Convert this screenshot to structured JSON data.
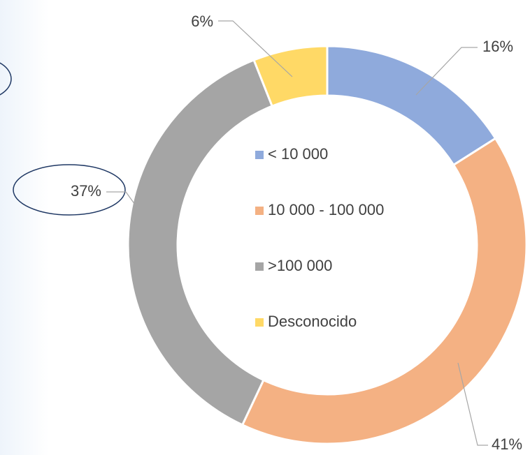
{
  "chart_data": {
    "type": "donut",
    "categories": [
      "< 10 000",
      "10 000 - 100 000",
      ">100 000",
      "Desconocido"
    ],
    "values": [
      16,
      41,
      37,
      6
    ],
    "value_labels": [
      "16%",
      "41%",
      "37%",
      "6%"
    ],
    "colors": [
      "#8faadc",
      "#f4b183",
      "#a5a5a5",
      "#ffd966"
    ],
    "legend": "center"
  }
}
